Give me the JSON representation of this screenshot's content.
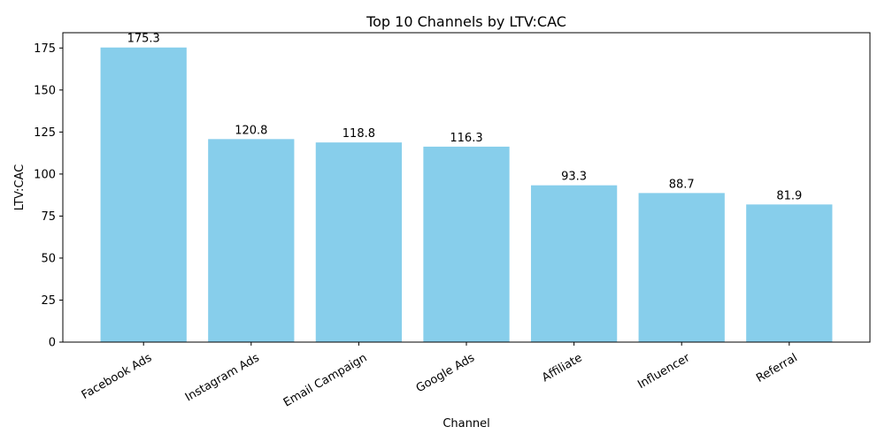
{
  "chart_data": {
    "type": "bar",
    "title": "Top 10 Channels by LTV:CAC",
    "xlabel": "Channel",
    "ylabel": "LTV:CAC",
    "categories": [
      "Facebook Ads",
      "Instagram Ads",
      "Email Campaign",
      "Google Ads",
      "Affiliate",
      "Influencer",
      "Referral"
    ],
    "values": [
      175.3,
      120.8,
      118.8,
      116.3,
      93.3,
      88.7,
      81.9
    ],
    "data_labels": [
      "175.3",
      "120.8",
      "118.8",
      "116.3",
      "93.3",
      "88.7",
      "81.9"
    ],
    "yticks": [
      0,
      25,
      50,
      75,
      100,
      125,
      150,
      175
    ],
    "ylim": [
      0,
      184.1
    ],
    "bar_color": "#87ceeb",
    "grid": false
  }
}
